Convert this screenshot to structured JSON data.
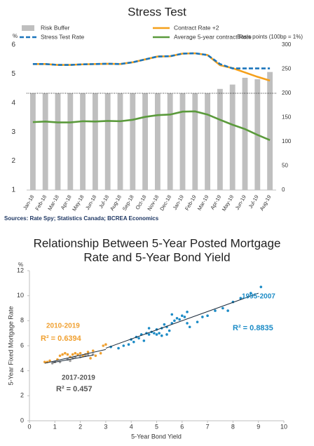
{
  "chart_data": [
    {
      "type": "bar",
      "title": "Stress Test",
      "left_axis_unit": "%",
      "right_axis_note": "Basis points (100bp = 1%)",
      "source": "Sources: Rate Spy; Statistics Canada; BCREA Economics",
      "categories": [
        "Jan-18",
        "Feb-18",
        "Mar-18",
        "Apr-18",
        "May-18",
        "Jun-18",
        "Jul-18",
        "Aug-18",
        "Sep-18",
        "Oct-18",
        "Nov-18",
        "Dec-18",
        "Jan-19",
        "Feb-19",
        "Mar-19",
        "Apr-19",
        "May-19",
        "Jun-19",
        "Jul-19",
        "Aug-19"
      ],
      "ylim": [
        1,
        6
      ],
      "yticks": [
        1,
        2,
        3,
        4,
        5,
        6
      ],
      "y2lim": [
        0,
        300
      ],
      "y2ticks": [
        0,
        50,
        100,
        150,
        200,
        250,
        300
      ],
      "reference_y2": 200,
      "series": [
        {
          "name": "Risk Buffer",
          "type": "bar",
          "axis": "y2",
          "color": "#bfbfbf",
          "values": [
            200,
            200,
            200,
            200,
            200,
            200,
            200,
            200,
            200,
            200,
            200,
            200,
            200,
            200,
            200,
            209,
            218,
            232,
            229,
            244
          ]
        },
        {
          "name": "Contract Rate +2",
          "type": "line",
          "color": "#f5a01a",
          "values": [
            5.34,
            5.34,
            5.31,
            5.31,
            5.33,
            5.34,
            5.35,
            5.34,
            5.4,
            5.5,
            5.6,
            5.61,
            5.7,
            5.71,
            5.65,
            5.3,
            5.2,
            5.05,
            4.9,
            4.77
          ]
        },
        {
          "name": "Stress Test Rate",
          "type": "line",
          "dash": true,
          "color": "#1b75bc",
          "values": [
            5.34,
            5.34,
            5.31,
            5.31,
            5.33,
            5.34,
            5.35,
            5.34,
            5.4,
            5.5,
            5.6,
            5.61,
            5.7,
            5.71,
            5.65,
            5.34,
            5.19,
            5.19,
            5.19,
            5.19
          ]
        },
        {
          "name": "Average 5-year contract Rate",
          "type": "line",
          "color": "#5b9a3c",
          "values": [
            3.34,
            3.36,
            3.33,
            3.33,
            3.37,
            3.36,
            3.38,
            3.37,
            3.42,
            3.52,
            3.58,
            3.6,
            3.7,
            3.71,
            3.6,
            3.42,
            3.25,
            3.1,
            2.9,
            2.72
          ]
        }
      ]
    },
    {
      "type": "scatter",
      "title": [
        "Relationship Between 5-Year Posted Mortgage",
        "Rate and 5-Year Bond Yield"
      ],
      "y_unit": "%",
      "xlabel": "5-Year Bond Yield",
      "ylabel": "5-Year Fixed Mortgage Rate",
      "xlim": [
        0,
        10
      ],
      "xticks": [
        0,
        1,
        2,
        3,
        4,
        5,
        6,
        7,
        8,
        9,
        10
      ],
      "ylim": [
        0,
        12
      ],
      "yticks": [
        0,
        2,
        4,
        6,
        8,
        10,
        12
      ],
      "series": [
        {
          "name": "1995-2007",
          "r2": "R² = 0.8835",
          "color": "#1b8bc6",
          "x": [
            3.2,
            3.5,
            3.7,
            3.9,
            4.0,
            4.1,
            4.2,
            4.3,
            4.4,
            4.5,
            4.6,
            4.7,
            4.8,
            4.9,
            5.0,
            5.1,
            5.2,
            5.3,
            5.4,
            5.5,
            5.6,
            5.7,
            5.8,
            5.9,
            6.0,
            6.1,
            6.2,
            5.2,
            5.4,
            6.3,
            6.6,
            6.8,
            7.0,
            7.3,
            7.6,
            7.8,
            8.0,
            8.3,
            8.7,
            9.1,
            4.7,
            5.6,
            6.2,
            5.0
          ],
          "y": [
            5.9,
            5.8,
            6.0,
            6.1,
            6.5,
            6.3,
            6.7,
            6.6,
            6.9,
            6.4,
            7.0,
            6.9,
            7.1,
            7.0,
            7.3,
            7.0,
            7.4,
            7.7,
            7.5,
            7.2,
            7.8,
            8.0,
            8.2,
            8.1,
            8.4,
            8.3,
            7.8,
            6.8,
            6.9,
            7.5,
            7.9,
            8.3,
            8.4,
            8.8,
            9.0,
            8.8,
            9.5,
            9.8,
            10.2,
            10.7,
            7.4,
            8.5,
            8.7,
            6.9
          ],
          "trend_x": [
            3.0,
            9.0
          ],
          "trend_y": [
            5.8,
            10.2
          ]
        },
        {
          "name": "2010-2019",
          "r2": "R² = 0.6394",
          "color": "#f0a030",
          "x": [
            0.6,
            0.7,
            0.8,
            1.1,
            1.2,
            1.3,
            1.4,
            1.5,
            1.6,
            1.7,
            1.8,
            1.9,
            2.0,
            2.1,
            2.2,
            2.3,
            2.5,
            2.6,
            2.8,
            2.9,
            3.0,
            1.0,
            2.4
          ],
          "y": [
            4.7,
            4.7,
            4.8,
            4.9,
            5.2,
            5.3,
            5.4,
            5.3,
            5.1,
            5.3,
            5.4,
            5.3,
            5.4,
            5.2,
            5.3,
            5.5,
            5.6,
            5.2,
            5.4,
            6.0,
            6.1,
            4.7,
            5.0
          ],
          "trend_x": [
            0.6,
            3.0
          ],
          "trend_y": [
            4.6,
            5.7
          ]
        },
        {
          "name": "2017-2019",
          "r2": "R² = 0.457",
          "color": "#9e9e9e",
          "x": [
            0.9,
            1.0,
            1.2,
            1.5,
            1.7,
            1.8,
            2.0,
            2.2,
            2.3,
            2.5,
            1.6
          ],
          "y": [
            4.6,
            4.7,
            4.7,
            4.9,
            5.0,
            5.1,
            5.1,
            5.2,
            5.3,
            5.3,
            4.8
          ],
          "trend_x": [
            0.9,
            2.5
          ],
          "trend_y": [
            4.65,
            5.25
          ]
        }
      ]
    }
  ]
}
